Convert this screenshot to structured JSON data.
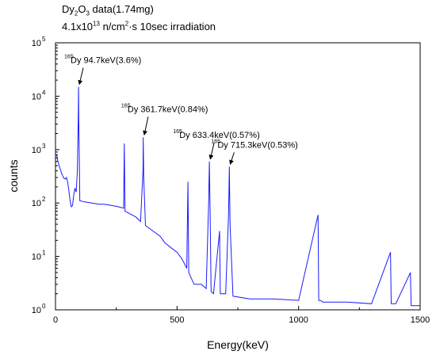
{
  "header": {
    "line1_a": "Dy",
    "line1_sub": "2",
    "line1_b": "O",
    "line1_sub2": "3",
    "line1_c": " data(1.74mg)",
    "line2_a": "4.1x10",
    "line2_sup": "13",
    "line2_b": " n/cm",
    "line2_sup2": "2",
    "line2_c": "·s 10sec irradiation"
  },
  "chart_data": {
    "type": "line",
    "title": "",
    "xlabel": "Energy(keV)",
    "ylabel": "counts",
    "xlim": [
      0,
      1500
    ],
    "ylim": [
      1,
      100000
    ],
    "yscale": "log",
    "grid": false,
    "legend": "none",
    "line_color": "#1a1aff",
    "x_ticks": [
      "0",
      "500",
      "1000",
      "1500"
    ],
    "x_tick_values": [
      0,
      500,
      1000,
      1500
    ],
    "y_tick_values": [
      1,
      10,
      100,
      1000,
      10000,
      100000
    ],
    "y_tick_base": "10",
    "y_tick_exponents": [
      "0",
      "1",
      "2",
      "3",
      "4",
      "5"
    ],
    "annotations": [
      {
        "mass": "165",
        "label": "Dy 94.7keV(3.6%)",
        "x": 94.7,
        "y": 15000
      },
      {
        "mass": "165",
        "label": "Dy 361.7keV(0.84%)",
        "x": 361.7,
        "y": 1700
      },
      {
        "mass": "165",
        "label": "Dy 633.4keV(0.57%)",
        "x": 633.4,
        "y": 600
      },
      {
        "mass": "165",
        "label": "Dy 715.3keV(0.53%)",
        "x": 715.3,
        "y": 480
      }
    ],
    "series": [
      {
        "values": [
          [
            5,
            800
          ],
          [
            10,
            600
          ],
          [
            15,
            500
          ],
          [
            20,
            430
          ],
          [
            25,
            360
          ],
          [
            30,
            320
          ],
          [
            35,
            290
          ],
          [
            40,
            280
          ],
          [
            45,
            300
          ],
          [
            50,
            250
          ],
          [
            55,
            170
          ],
          [
            60,
            110
          ],
          [
            65,
            85
          ],
          [
            70,
            90
          ],
          [
            75,
            140
          ],
          [
            80,
            190
          ],
          [
            85,
            160
          ],
          [
            90,
            400
          ],
          [
            94,
            5000
          ],
          [
            95,
            15000
          ],
          [
            96,
            3000
          ],
          [
            98,
            600
          ],
          [
            100,
            110
          ],
          [
            120,
            105
          ],
          [
            150,
            100
          ],
          [
            180,
            95
          ],
          [
            200,
            95
          ],
          [
            230,
            90
          ],
          [
            260,
            85
          ],
          [
            280,
            80
          ],
          [
            283,
            1300
          ],
          [
            286,
            70
          ],
          [
            300,
            65
          ],
          [
            330,
            55
          ],
          [
            350,
            45
          ],
          [
            360,
            400
          ],
          [
            361,
            1700
          ],
          [
            363,
            300
          ],
          [
            370,
            38
          ],
          [
            400,
            30
          ],
          [
            430,
            24
          ],
          [
            450,
            18
          ],
          [
            480,
            14
          ],
          [
            500,
            12
          ],
          [
            520,
            9
          ],
          [
            540,
            6
          ],
          [
            545,
            250
          ],
          [
            548,
            5
          ],
          [
            570,
            3
          ],
          [
            600,
            3
          ],
          [
            620,
            2.5
          ],
          [
            630,
            100
          ],
          [
            633,
            600
          ],
          [
            636,
            80
          ],
          [
            640,
            2.2
          ],
          [
            650,
            2
          ],
          [
            675,
            30
          ],
          [
            678,
            2
          ],
          [
            700,
            2
          ],
          [
            712,
            60
          ],
          [
            715,
            480
          ],
          [
            718,
            40
          ],
          [
            730,
            1.8
          ],
          [
            800,
            1.6
          ],
          [
            900,
            1.6
          ],
          [
            1000,
            1.5
          ],
          [
            1080,
            60
          ],
          [
            1083,
            1.5
          ],
          [
            1090,
            1.5
          ],
          [
            1100,
            1.4
          ],
          [
            1200,
            1.4
          ],
          [
            1300,
            1.3
          ],
          [
            1378,
            12
          ],
          [
            1381,
            1.3
          ],
          [
            1400,
            1.3
          ],
          [
            1460,
            5
          ],
          [
            1463,
            1.2
          ],
          [
            1500,
            1.2
          ]
        ]
      }
    ]
  }
}
